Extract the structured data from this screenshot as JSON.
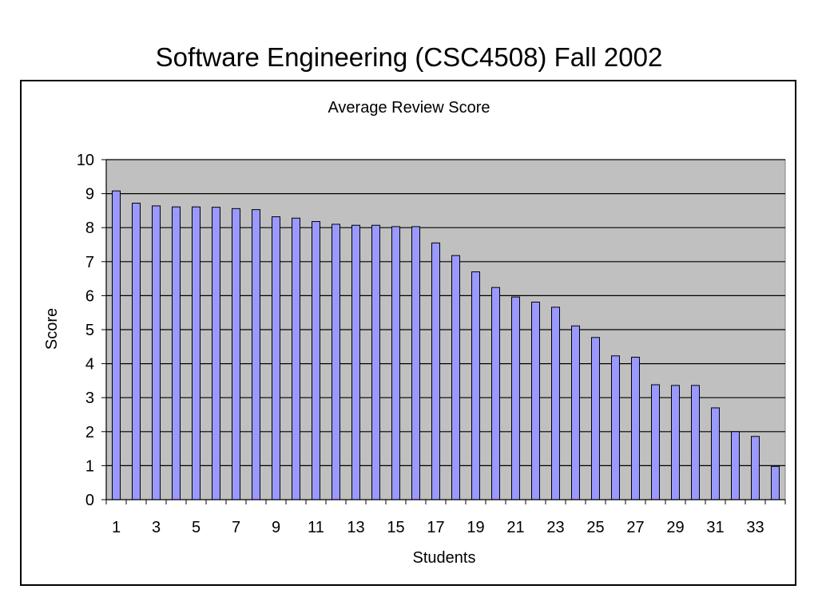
{
  "slide": {
    "title": "Software Engineering (CSC4508) Fall 2002"
  },
  "chart_data": {
    "type": "bar",
    "title": "Average Review Score",
    "xlabel": "Students",
    "ylabel": "Score",
    "ylim": [
      0,
      10
    ],
    "yticks": [
      0,
      1,
      2,
      3,
      4,
      5,
      6,
      7,
      8,
      9,
      10
    ],
    "grid": true,
    "legend": "none",
    "categories": [
      1,
      2,
      3,
      4,
      5,
      6,
      7,
      8,
      9,
      10,
      11,
      12,
      13,
      14,
      15,
      16,
      17,
      18,
      19,
      20,
      21,
      22,
      23,
      24,
      25,
      26,
      27,
      28,
      29,
      30,
      31,
      32,
      33,
      34
    ],
    "x_tick_labels": [
      "1",
      "3",
      "5",
      "7",
      "9",
      "11",
      "13",
      "15",
      "17",
      "19",
      "21",
      "23",
      "25",
      "27",
      "29",
      "31",
      "33"
    ],
    "values": [
      9.08,
      8.72,
      8.64,
      8.61,
      8.61,
      8.6,
      8.56,
      8.53,
      8.32,
      8.28,
      8.18,
      8.1,
      8.07,
      8.07,
      8.03,
      8.03,
      7.55,
      7.18,
      6.7,
      6.24,
      5.96,
      5.81,
      5.66,
      5.11,
      4.77,
      4.23,
      4.19,
      3.38,
      3.36,
      3.36,
      2.7,
      2.0,
      1.86,
      0.98
    ],
    "colors": {
      "plot_background": "#c0c0c0",
      "bar_fill": "#9999ff",
      "bar_stroke": "#000000",
      "grid": "#000000"
    }
  }
}
